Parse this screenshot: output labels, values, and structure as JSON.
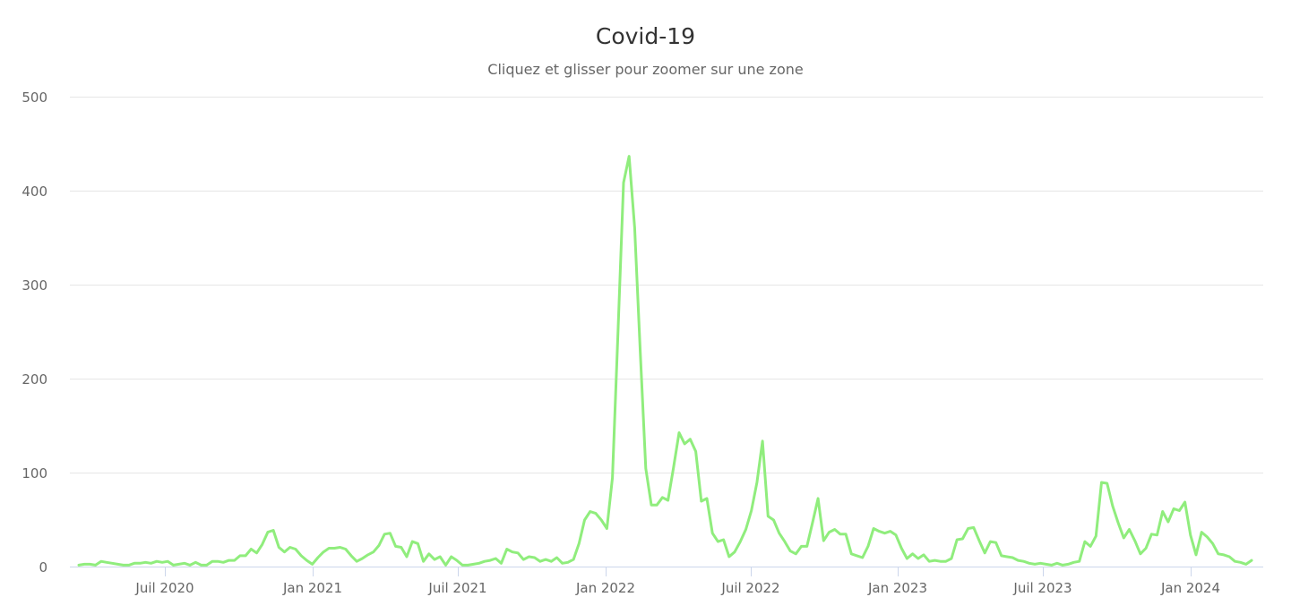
{
  "title": "Covid-19",
  "subtitle": "Cliquez et glisser pour zoomer sur une zone",
  "colors": {
    "series": "#90ed7d",
    "grid": "#e6e6e6",
    "axis": "#ccd6eb",
    "label": "#666666",
    "title": "#333333"
  },
  "chart_data": {
    "type": "line",
    "title": "Covid-19",
    "subtitle": "Cliquez et glisser pour zoomer sur une zone",
    "xlabel": "",
    "ylabel": "",
    "ylim": [
      0,
      500
    ],
    "yticks": [
      0,
      100,
      200,
      300,
      400,
      500
    ],
    "xticks": [
      "Juil 2020",
      "Jan 2021",
      "Juil 2021",
      "Jan 2022",
      "Juil 2022",
      "Jan 2023",
      "Juil 2023",
      "Jan 2024"
    ],
    "x_range": [
      "2020-03 (mi-mars)",
      "2024-03 (mi-mars)"
    ],
    "x_interval": "weekly",
    "grid": true,
    "legend": false,
    "series": [
      {
        "name": "Covid-19",
        "values": [
          2,
          3,
          3,
          2,
          6,
          5,
          4,
          3,
          2,
          2,
          4,
          4,
          5,
          4,
          6,
          5,
          6,
          2,
          3,
          4,
          2,
          5,
          2,
          2,
          6,
          6,
          5,
          7,
          7,
          12,
          12,
          19,
          15,
          24,
          37,
          39,
          21,
          16,
          21,
          19,
          12,
          7,
          3,
          10,
          16,
          20,
          20,
          21,
          19,
          12,
          6,
          9,
          13,
          16,
          23,
          35,
          36,
          22,
          21,
          11,
          27,
          25,
          6,
          14,
          8,
          11,
          2,
          11,
          7,
          2,
          2,
          3,
          4,
          6,
          7,
          9,
          4,
          19,
          16,
          15,
          8,
          11,
          10,
          6,
          8,
          6,
          10,
          4,
          5,
          8,
          25,
          50,
          59,
          57,
          50,
          41,
          95,
          250,
          409,
          437,
          361,
          230,
          105,
          66,
          66,
          74,
          71,
          106,
          143,
          131,
          136,
          123,
          70,
          73,
          36,
          27,
          29,
          11,
          16,
          27,
          40,
          60,
          90,
          134,
          54,
          50,
          36,
          27,
          17,
          14,
          22,
          22,
          47,
          73,
          28,
          37,
          40,
          35,
          35,
          14,
          12,
          10,
          22,
          41,
          38,
          36,
          38,
          34,
          20,
          9,
          14,
          9,
          13,
          6,
          7,
          6,
          6,
          9,
          29,
          30,
          41,
          42,
          28,
          15,
          27,
          26,
          12,
          11,
          10,
          7,
          6,
          4,
          3,
          4,
          3,
          2,
          4,
          2,
          3,
          5,
          6,
          27,
          22,
          33,
          90,
          89,
          65,
          47,
          31,
          40,
          28,
          14,
          20,
          35,
          34,
          59,
          48,
          62,
          60,
          69,
          34,
          13,
          37,
          32,
          25,
          14,
          13,
          11,
          6,
          5,
          3,
          7
        ]
      }
    ]
  },
  "y_axis": {
    "labels": [
      "0",
      "100",
      "200",
      "300",
      "400",
      "500"
    ]
  },
  "x_axis": {
    "labels": [
      "Juil 2020",
      "Jan 2021",
      "Juil 2021",
      "Jan 2022",
      "Juil 2022",
      "Jan 2023",
      "Juil 2023",
      "Jan 2024"
    ]
  }
}
